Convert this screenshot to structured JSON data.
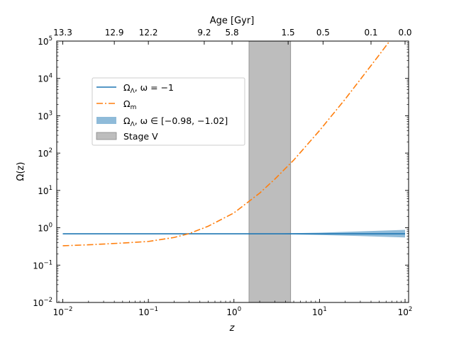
{
  "chart_data": {
    "type": "line",
    "xlabel": "z",
    "ylabel": "Ω(z)",
    "top_axis_label": "Age [Gyr]",
    "xscale": "log",
    "yscale": "log",
    "xlim": [
      0.0085,
      110
    ],
    "ylim": [
      0.01,
      100000
    ],
    "x_ticks": [
      {
        "value": 0.01,
        "base": "10",
        "exp": "−2"
      },
      {
        "value": 0.1,
        "base": "10",
        "exp": "−1"
      },
      {
        "value": 1,
        "base": "10",
        "exp": "0"
      },
      {
        "value": 10,
        "base": "10",
        "exp": "1"
      },
      {
        "value": 100,
        "base": "10",
        "exp": "2"
      }
    ],
    "y_ticks": [
      {
        "value": 0.01,
        "base": "10",
        "exp": "−2"
      },
      {
        "value": 0.1,
        "base": "10",
        "exp": "−1"
      },
      {
        "value": 1,
        "base": "10",
        "exp": "0"
      },
      {
        "value": 10,
        "base": "10",
        "exp": "1"
      },
      {
        "value": 100,
        "base": "10",
        "exp": "2"
      },
      {
        "value": 1000,
        "base": "10",
        "exp": "3"
      },
      {
        "value": 10000,
        "base": "10",
        "exp": "4"
      },
      {
        "value": 100000,
        "base": "10",
        "exp": "5"
      }
    ],
    "top_ticks": [
      {
        "z": 0.01,
        "label": "13.3"
      },
      {
        "z": 0.04,
        "label": "12.9"
      },
      {
        "z": 0.1,
        "label": "12.2"
      },
      {
        "z": 0.45,
        "label": "9.2"
      },
      {
        "z": 0.95,
        "label": "5.8"
      },
      {
        "z": 4.3,
        "label": "1.5"
      },
      {
        "z": 11,
        "label": "0.5"
      },
      {
        "z": 40,
        "label": "0.1"
      },
      {
        "z": 100,
        "label": "0.0"
      }
    ],
    "series": [
      {
        "name": "Ω_Λ, ω = −1",
        "color": "#1f77b4",
        "style": "solid",
        "x": [
          0.01,
          0.1,
          1,
          10,
          100
        ],
        "y": [
          0.69,
          0.69,
          0.69,
          0.69,
          0.69
        ]
      },
      {
        "name": "Ω_m",
        "color": "#ff7f0e",
        "style": "dashdot",
        "x": [
          0.01,
          0.02,
          0.05,
          0.1,
          0.2,
          0.3,
          0.5,
          1,
          2,
          3,
          5,
          10,
          20,
          50,
          66
        ],
        "y": [
          0.33,
          0.35,
          0.39,
          0.43,
          0.55,
          0.7,
          1.1,
          2.5,
          8.5,
          20,
          65,
          400,
          2800,
          43000,
          100000
        ]
      }
    ],
    "bands": [
      {
        "name": "Ω_Λ, ω ∈ [−0.98, −1.02]",
        "color": "#1f77b4",
        "x": [
          0.01,
          1,
          3,
          10,
          30,
          100
        ],
        "y_low": [
          0.69,
          0.69,
          0.68,
          0.64,
          0.6,
          0.55
        ],
        "y_high": [
          0.69,
          0.69,
          0.7,
          0.74,
          0.8,
          0.88
        ]
      }
    ],
    "spans": [
      {
        "name": "Stage V",
        "color": "#bdbdbd",
        "xmin": 1.5,
        "xmax": 4.6
      }
    ],
    "legend_location": "upper-left",
    "legend": [
      {
        "key": "lambda",
        "main": "Ω",
        "sub": "Λ",
        "rest": ", ω = −1"
      },
      {
        "key": "matter",
        "main": "Ω",
        "sub": "m",
        "rest": ""
      },
      {
        "key": "band",
        "main": "Ω",
        "sub": "Λ",
        "rest": ", ω ∈ [−0.98, −1.02]"
      },
      {
        "key": "stage",
        "main": "",
        "sub": "",
        "rest": "Stage V"
      }
    ]
  }
}
